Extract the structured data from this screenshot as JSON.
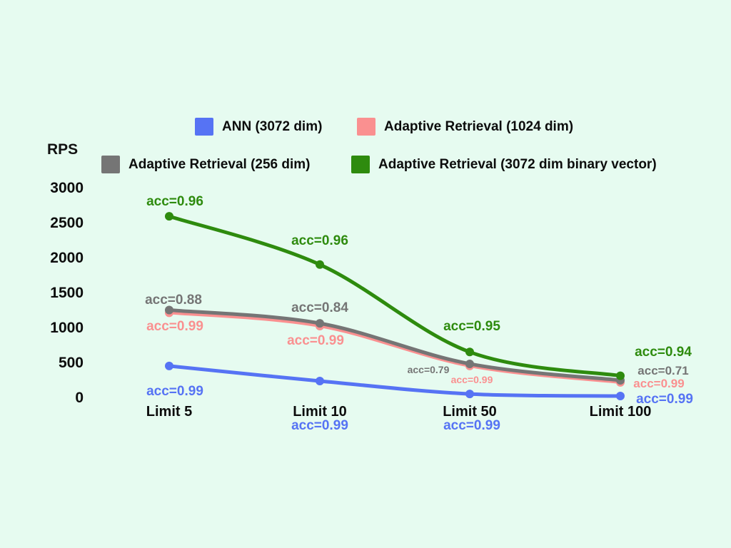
{
  "colors": {
    "background": "#e6fbf0",
    "text": "#0c0c0c",
    "blue": "#5673f4",
    "pink": "#fa9090",
    "gray": "#757575",
    "green": "#2e8b0e"
  },
  "y_axis": {
    "label": "RPS"
  },
  "chart_data": {
    "type": "line",
    "title": "",
    "xlabel": "",
    "ylabel": "RPS",
    "categories": [
      "Limit 5",
      "Limit 10",
      "Limit 50",
      "Limit 100"
    ],
    "ylim": [
      0,
      3000
    ],
    "yticks": [
      0,
      500,
      1000,
      1500,
      2000,
      2500,
      3000
    ],
    "grid": false,
    "legend_position": "top",
    "series": [
      {
        "name": "ANN (3072 dim)",
        "color": "#5673f4",
        "values": [
          450,
          235,
          50,
          20
        ],
        "acc_labels": [
          "acc=0.99",
          "acc=0.99",
          "acc=0.99",
          "acc=0.99"
        ]
      },
      {
        "name": "Adaptive Retrieval (1024 dim)",
        "color": "#fa9090",
        "values": [
          1210,
          1020,
          450,
          215
        ],
        "acc_labels": [
          "acc=0.99",
          "acc=0.99",
          "acc=0.99",
          "acc=0.99"
        ]
      },
      {
        "name": "Adaptive Retrieval (256 dim)",
        "color": "#757575",
        "values": [
          1250,
          1060,
          480,
          245
        ],
        "acc_labels": [
          "acc=0.88",
          "acc=0.84",
          "acc=0.79",
          "acc=0.71"
        ]
      },
      {
        "name": "Adaptive Retrieval (3072 dim binary vector)",
        "color": "#2e8b0e",
        "values": [
          2590,
          1900,
          650,
          310
        ],
        "acc_labels": [
          "acc=0.96",
          "acc=0.96",
          "acc=0.95",
          "acc=0.94"
        ]
      }
    ]
  }
}
